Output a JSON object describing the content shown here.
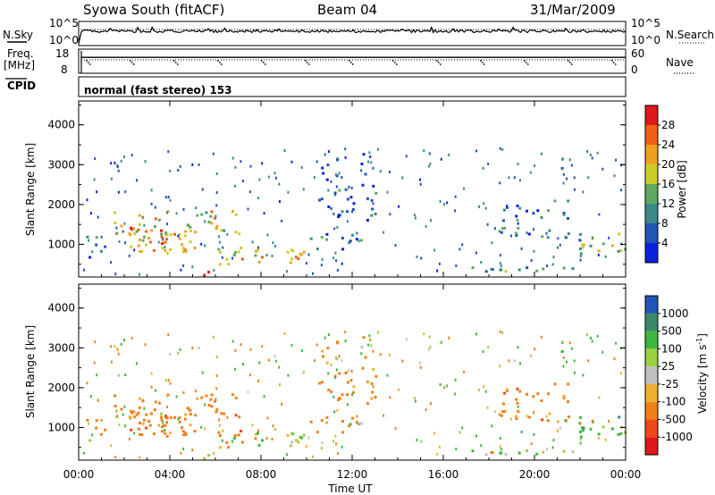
{
  "header": {
    "station": "Syowa South (fitACF)",
    "beam": "Beam 04",
    "date": "31/Mar/2009"
  },
  "noise_panel": {
    "left_label": "N.Sky",
    "right_label": "N.Search",
    "left_ticks": [
      "10^5",
      "10^0"
    ],
    "right_ticks": [
      "10^5",
      "10^0"
    ]
  },
  "freq_panel": {
    "left_label_1": "Freq.",
    "left_label_2": "[MHz]",
    "right_label": "Nave",
    "left_ticks": [
      "18",
      "8"
    ],
    "right_ticks": [
      "60",
      "0"
    ],
    "freq_range_mhz": [
      8,
      18
    ],
    "freq_value_mhz": 14.6,
    "nave_range": [
      0,
      60
    ],
    "nave_value": 31
  },
  "cpid": {
    "label": "CPID",
    "text": "normal (fast stereo) 153"
  },
  "power_colorbar": {
    "label": "Power [dB]",
    "ticks": [
      "28",
      "24",
      "20",
      "16",
      "12",
      "8",
      "4"
    ],
    "colors": [
      "#0a22dc",
      "#1f55b5",
      "#3a8a8a",
      "#5fa95f",
      "#c9cf2a",
      "#f0a020",
      "#f06018",
      "#e01818"
    ]
  },
  "velocity_colorbar": {
    "label": "Velocity [m s",
    "label_sup": "-1",
    "label_end": "]",
    "ticks": [
      "1000",
      "500",
      "100",
      "25",
      "-25",
      "-100",
      "-500",
      "-1000"
    ],
    "colors": [
      "#e01818",
      "#f04818",
      "#f08018",
      "#f0b030",
      "#c0c0c0",
      "#9ad040",
      "#3cb83c",
      "#3a8a6a",
      "#1f55b5"
    ]
  },
  "y_axis": {
    "label": "Slant Range [km]",
    "ticks": [
      "4000",
      "3000",
      "2000",
      "1000"
    ]
  },
  "x_axis": {
    "label": "Time UT",
    "ticks": [
      "00:00",
      "04:00",
      "08:00",
      "12:00",
      "16:00",
      "20:00",
      "00:00"
    ]
  },
  "chart_data": [
    {
      "type": "heatmap",
      "title": "Power [dB]",
      "xlabel": "Time UT",
      "ylabel": "Slant Range [km]",
      "x_range_hours": [
        0,
        24
      ],
      "ylim": [
        180,
        4600
      ],
      "color_range": [
        0,
        30
      ],
      "echo_regions": [
        {
          "t": [
            0.2,
            1.2
          ],
          "r": [
            700,
            1300
          ],
          "db": 10
        },
        {
          "t": [
            1.5,
            7.2
          ],
          "r": [
            800,
            1900
          ],
          "db": 18
        },
        {
          "t": [
            2.0,
            3.2
          ],
          "r": [
            800,
            1500
          ],
          "db": 24
        },
        {
          "t": [
            3.5,
            4.5
          ],
          "r": [
            900,
            1400
          ],
          "db": 22
        },
        {
          "t": [
            5.8,
            10.5
          ],
          "r": [
            500,
            900
          ],
          "db": 20
        },
        {
          "t": [
            4.5,
            5.8
          ],
          "r": [
            200,
            350
          ],
          "db": 28
        },
        {
          "t": [
            10.0,
            12.5
          ],
          "r": [
            900,
            1300
          ],
          "db": 8
        },
        {
          "t": [
            10.5,
            13.0
          ],
          "r": [
            1600,
            3300
          ],
          "db": 5
        },
        {
          "t": [
            18.5,
            21.5
          ],
          "r": [
            1200,
            2200
          ],
          "db": 8
        },
        {
          "t": [
            21.5,
            24.0
          ],
          "r": [
            800,
            1300
          ],
          "db": 14
        },
        {
          "t": [
            17.0,
            22.0
          ],
          "r": [
            250,
            450
          ],
          "db": 10
        }
      ]
    },
    {
      "type": "heatmap",
      "title": "Velocity [m s-1]",
      "xlabel": "Time UT",
      "ylabel": "Slant Range [km]",
      "x_range_hours": [
        0,
        24
      ],
      "ylim": [
        180,
        4600
      ],
      "color_range": [
        -1000,
        1000
      ],
      "echo_regions": [
        {
          "t": [
            0.2,
            1.2
          ],
          "r": [
            700,
            1300
          ],
          "v": -150
        },
        {
          "t": [
            1.5,
            7.2
          ],
          "r": [
            800,
            1900
          ],
          "v": -300
        },
        {
          "t": [
            5.8,
            10.5
          ],
          "r": [
            500,
            900
          ],
          "v": 0
        },
        {
          "t": [
            4.5,
            8.0
          ],
          "r": [
            200,
            450
          ],
          "v": -60
        },
        {
          "t": [
            10.5,
            13.0
          ],
          "r": [
            1600,
            3300
          ],
          "v": -200
        },
        {
          "t": [
            18.5,
            21.5
          ],
          "r": [
            1200,
            2200
          ],
          "v": -300
        },
        {
          "t": [
            21.5,
            24.0
          ],
          "r": [
            800,
            1300
          ],
          "v": 300
        },
        {
          "t": [
            17.0,
            22.0
          ],
          "r": [
            250,
            450
          ],
          "v": 60
        }
      ]
    }
  ]
}
